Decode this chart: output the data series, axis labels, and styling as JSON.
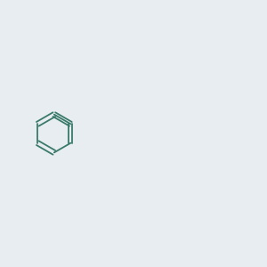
{
  "background_color": "#e8edf2",
  "bond_color": "#3a7a6a",
  "oxygen_color": "#ee1111",
  "nitrogen_color": "#1111cc",
  "hydrogen_color": "#6a9090",
  "fig_width": 3.0,
  "fig_height": 3.0,
  "dpi": 100
}
